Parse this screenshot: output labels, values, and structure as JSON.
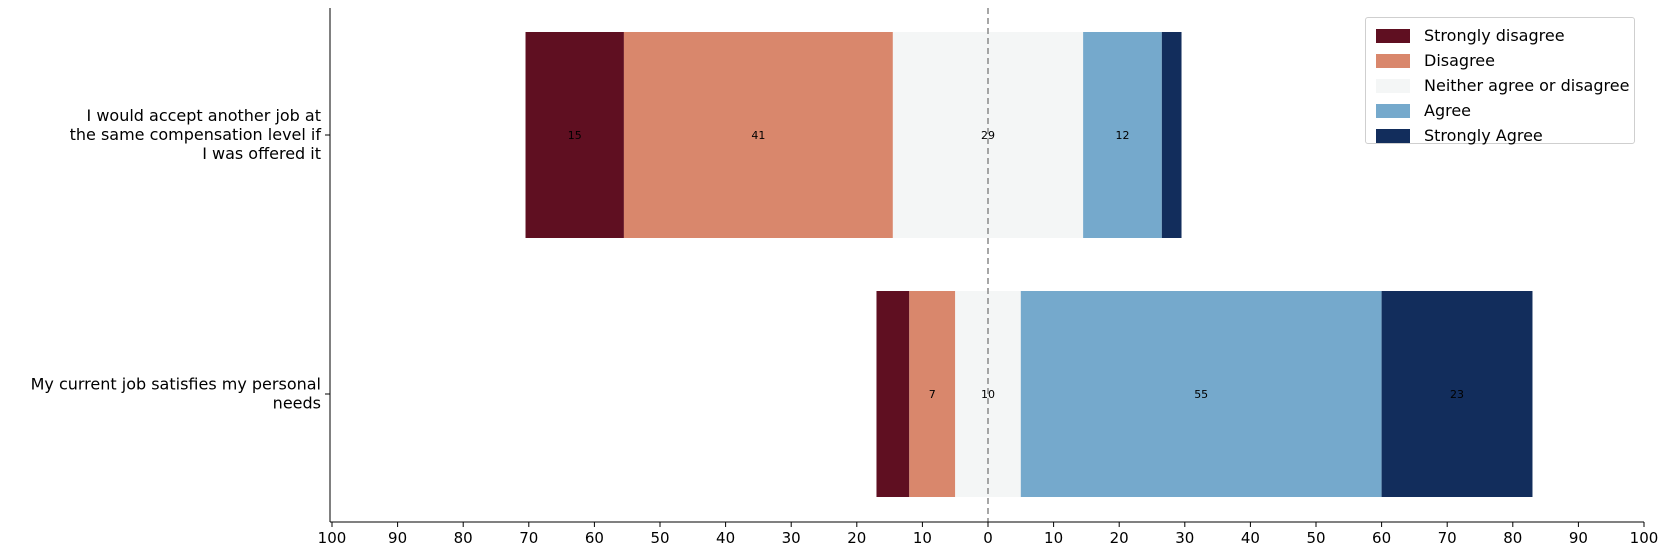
{
  "chart_data": {
    "type": "bar",
    "orientation": "horizontal-diverging",
    "categories": [
      [
        "I would accept another job at",
        "the same compensation level if",
        "I was offered it"
      ],
      [
        "My current job satisfies my personal",
        "needs"
      ]
    ],
    "series": [
      {
        "name": "Strongly disagree",
        "color": "#5f0f21",
        "values": [
          15,
          5
        ],
        "labels": [
          "15",
          ""
        ]
      },
      {
        "name": "Disagree",
        "color": "#d9876c",
        "values": [
          41,
          7
        ],
        "labels": [
          "41",
          "7"
        ]
      },
      {
        "name": "Neither agree or disagree",
        "color": "#f4f6f6",
        "values": [
          29,
          10
        ],
        "labels": [
          "29",
          "10"
        ]
      },
      {
        "name": "Agree",
        "color": "#75a9cc",
        "values": [
          12,
          55
        ],
        "labels": [
          "12",
          "55"
        ]
      },
      {
        "name": "Strongly Agree",
        "color": "#122d5c",
        "values": [
          3,
          23
        ],
        "labels": [
          "",
          "23"
        ]
      }
    ],
    "xlim": [
      -100,
      100
    ],
    "xticks": [
      "100",
      "90",
      "80",
      "70",
      "60",
      "50",
      "40",
      "30",
      "20",
      "10",
      "0",
      "10",
      "20",
      "30",
      "40",
      "50",
      "60",
      "70",
      "80",
      "90",
      "100"
    ],
    "center_line": "dashed at 0",
    "grid": false,
    "legend_position": "top-right",
    "title": "",
    "xlabel": "",
    "ylabel": ""
  }
}
